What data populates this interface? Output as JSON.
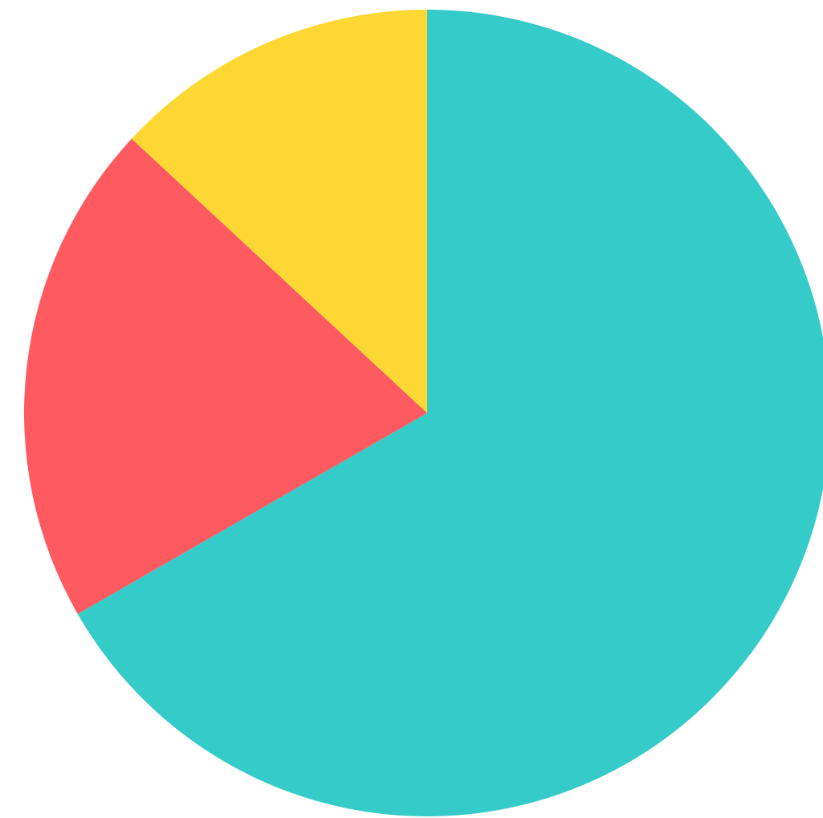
{
  "chart_data": {
    "type": "pie",
    "values": [
      66.7,
      20.2,
      13.1
    ],
    "colors": [
      "#35CBC8",
      "#FF5A5F",
      "#FDD835"
    ],
    "start_angle_deg": 0,
    "direction": "clockwise",
    "legend": false,
    "title": ""
  }
}
